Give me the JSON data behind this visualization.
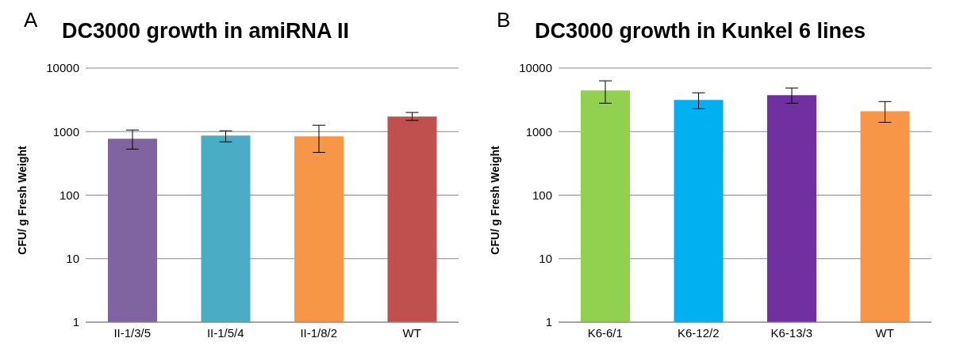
{
  "chart_data": [
    {
      "type": "bar",
      "title": "DC3000 growth in amiRNA II",
      "annotations": [
        "A"
      ],
      "ylabel": "CFU/ g Fresh Weight",
      "categories": [
        "II-1/3/5",
        "II-1/5/4",
        "II-1/8/2",
        "WT"
      ],
      "values": [
        770,
        865,
        840,
        1730
      ],
      "colors": [
        "#8064a2",
        "#4bacc6",
        "#f79646",
        "#c0504d"
      ],
      "errors": [
        [
          530,
          1060
        ],
        [
          690,
          1030
        ],
        [
          470,
          1260
        ],
        [
          1500,
          2000
        ]
      ],
      "log": "y",
      "ylim": [
        1,
        10000
      ],
      "yticks": [
        1,
        10,
        100,
        1000,
        10000
      ],
      "grid": "y",
      "legend": false
    },
    {
      "type": "bar",
      "title": "DC3000 growth in Kunkel 6 lines",
      "annotations": [
        "B"
      ],
      "ylabel": "CFU/ g Fresh Weight",
      "categories": [
        "K6-6/1",
        "K6-12/2",
        "K6-13/3",
        "WT"
      ],
      "values": [
        4460,
        3150,
        3750,
        2100
      ],
      "colors": [
        "#92d050",
        "#00b0f0",
        "#7030a0",
        "#f79646"
      ],
      "errors": [
        [
          2800,
          6300
        ],
        [
          2290,
          4080
        ],
        [
          2800,
          4860
        ],
        [
          1400,
          2970
        ]
      ],
      "log": "y",
      "ylim": [
        1,
        10000
      ],
      "yticks": [
        1,
        10,
        100,
        1000,
        10000
      ],
      "grid": "y",
      "legend": false
    }
  ]
}
